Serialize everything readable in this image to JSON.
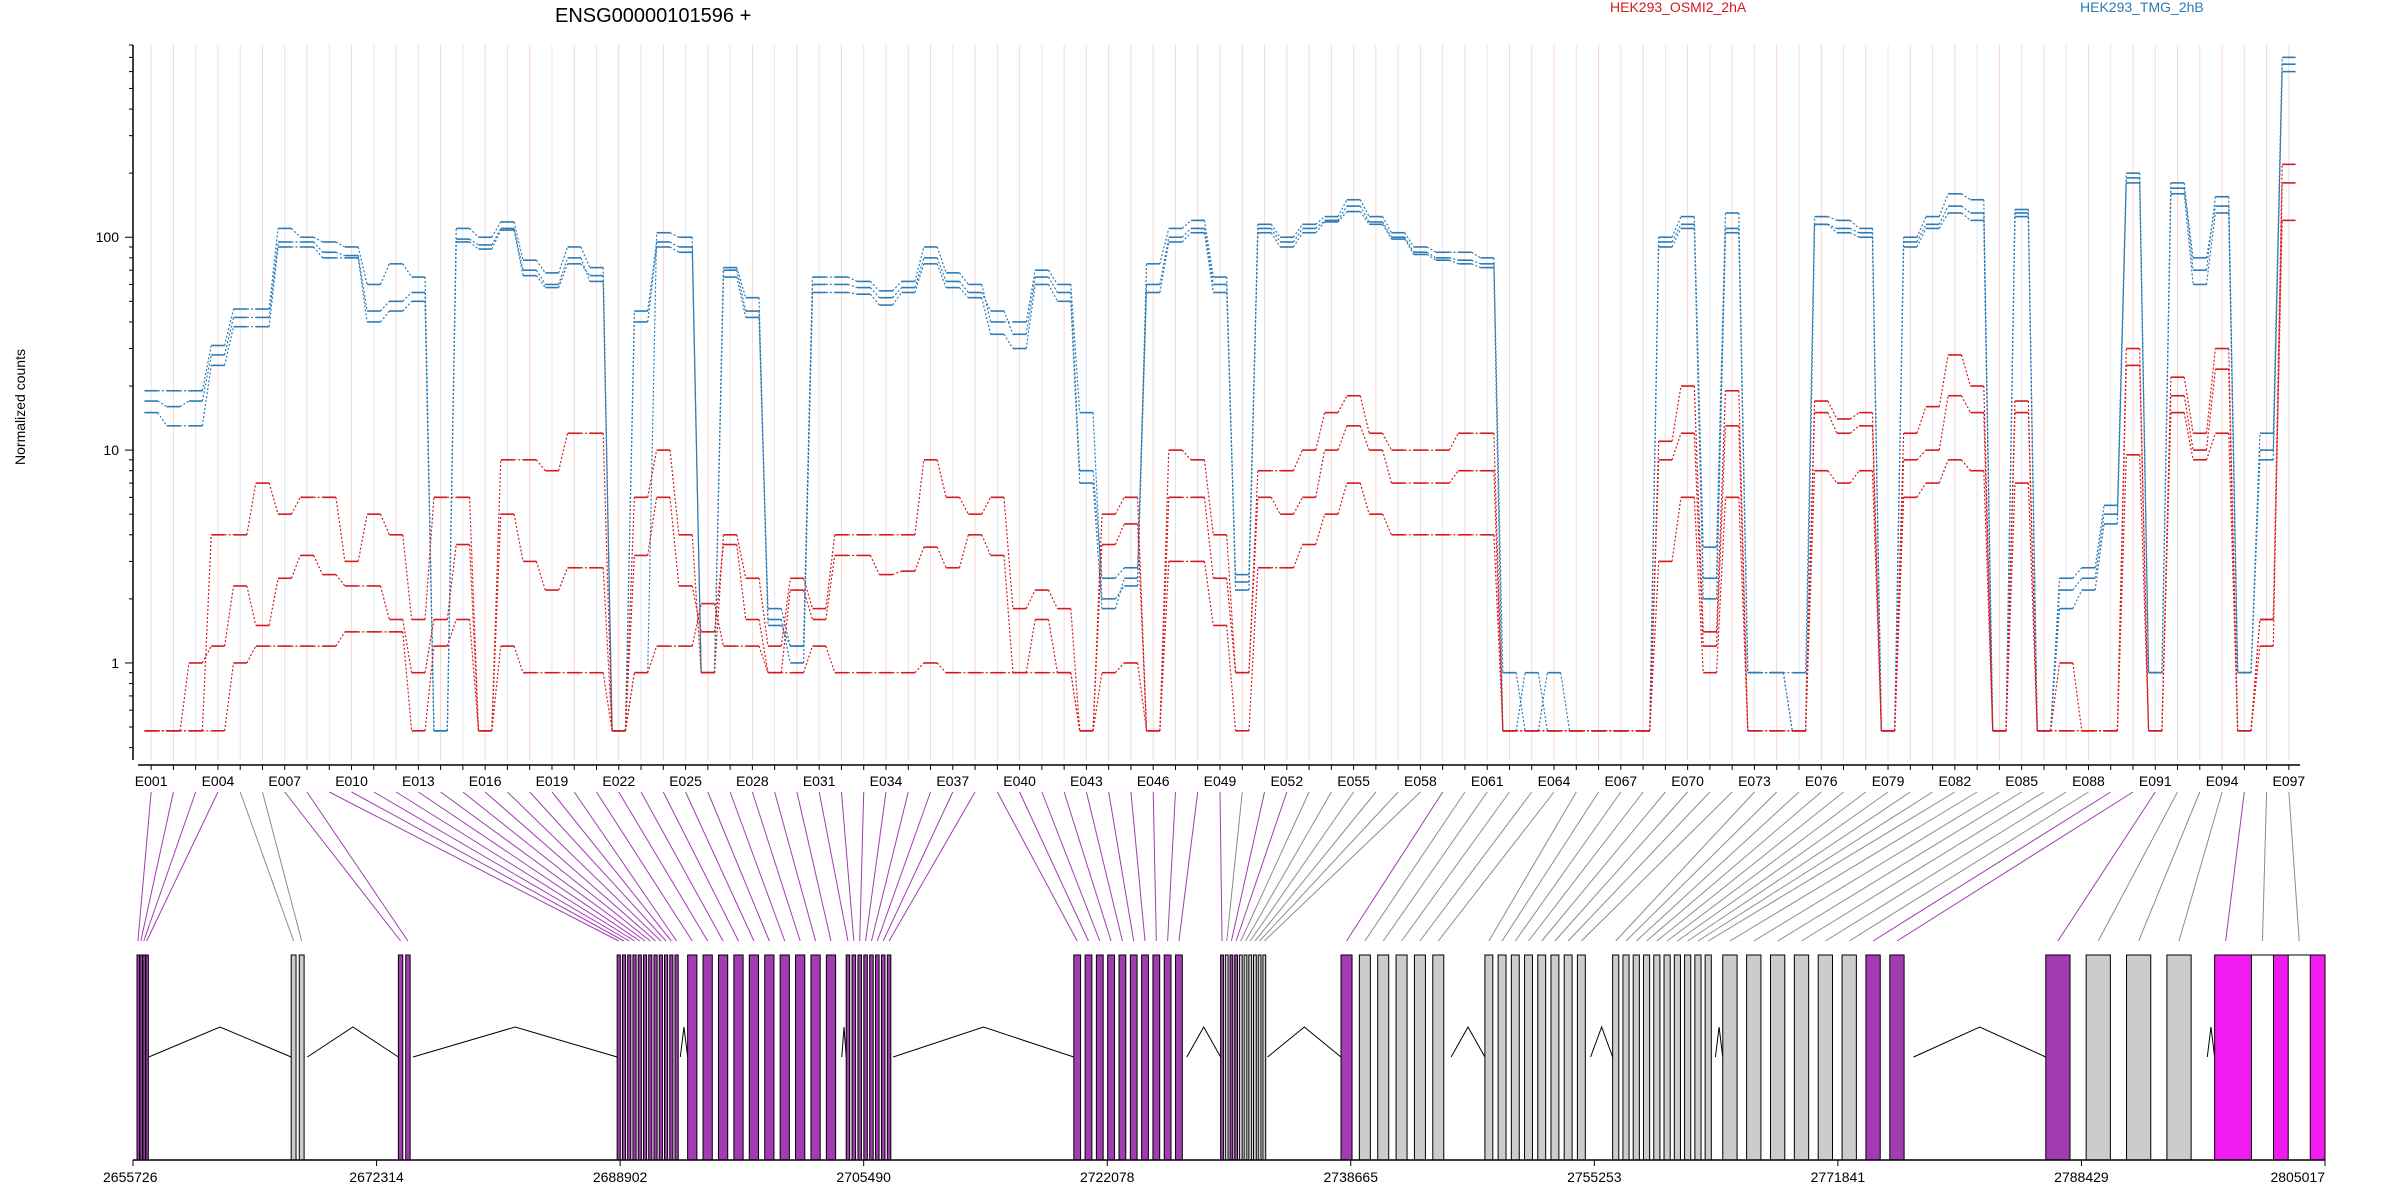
{
  "title": "ENSG00000101596 +",
  "colors": {
    "red": "#d7191c",
    "blue": "#2c7bb6",
    "magenta": "#f01cf0",
    "grey_exon": "#cccccc",
    "connector_grey": "#8c8c8c",
    "connector_purple": "#a33cb3"
  },
  "chart_data": {
    "type": "line",
    "title": "ENSG00000101596 +",
    "xlabel": "",
    "ylabel": "Normalized counts",
    "yscale": "log",
    "ylim": [
      0.35,
      800
    ],
    "y_ticks": [
      "1",
      "10",
      "100"
    ],
    "y_tick_values": [
      1,
      10,
      100
    ],
    "legend": [
      {
        "name": "HEK293_OSMI2_2hA",
        "color": "#d7191c",
        "placement": "top-center"
      },
      {
        "name": "HEK293_TMG_2hB",
        "color": "#2c7bb6",
        "placement": "top-right"
      }
    ],
    "exon_bins": [
      "E001",
      "E002",
      "E003",
      "E004",
      "E005",
      "E006",
      "E007",
      "E008",
      "E009",
      "E010",
      "E011",
      "E012",
      "E013",
      "E014",
      "E015",
      "E016",
      "E017",
      "E018",
      "E019",
      "E020",
      "E021",
      "E022",
      "E023",
      "E024",
      "E025",
      "E026",
      "E027",
      "E028",
      "E029",
      "E030",
      "E031",
      "E032",
      "E033",
      "E034",
      "E035",
      "E036",
      "E037",
      "E038",
      "E039",
      "E040",
      "E041",
      "E042",
      "E043",
      "E044",
      "E045",
      "E046",
      "E047",
      "E048",
      "E049",
      "E050",
      "E051",
      "E052",
      "E053",
      "E054",
      "E055",
      "E056",
      "E057",
      "E058",
      "E059",
      "E060",
      "E061",
      "E062",
      "E063",
      "E064",
      "E065",
      "E066",
      "E067",
      "E068",
      "E069",
      "E070",
      "E071",
      "E072",
      "E073",
      "E074",
      "E075",
      "E076",
      "E077",
      "E078",
      "E079",
      "E080",
      "E081",
      "E082",
      "E083",
      "E084",
      "E085",
      "E086",
      "E087",
      "E088",
      "E089",
      "E090",
      "E091",
      "E092",
      "E093",
      "E094",
      "E095",
      "E096",
      "E097"
    ],
    "x_tick_labels": [
      "E001",
      "E004",
      "E007",
      "E010",
      "E013",
      "E016",
      "E019",
      "E022",
      "E025",
      "E028",
      "E031",
      "E034",
      "E037",
      "E040",
      "E043",
      "E046",
      "E049",
      "E052",
      "E055",
      "E058",
      "E061",
      "E064",
      "E067",
      "E070",
      "E073",
      "E076",
      "E079",
      "E082",
      "E085",
      "E088",
      "E091",
      "E094",
      "E097"
    ],
    "series": [
      {
        "name": "HEK293_TMG_2hB",
        "color": "#2c7bb6",
        "values": [
          17,
          16,
          17,
          28,
          42,
          42,
          95,
          95,
          85,
          82,
          45,
          50,
          55,
          0.48,
          98,
          92,
          110,
          70,
          60,
          80,
          62,
          0.48,
          45,
          95,
          90,
          0.9,
          70,
          45,
          1.8,
          1.2,
          60,
          60,
          58,
          52,
          58,
          80,
          62,
          55,
          45,
          35,
          65,
          55,
          8,
          2.5,
          2.8,
          60,
          100,
          110,
          60,
          2.4,
          110,
          95,
          110,
          120,
          140,
          118,
          100,
          85,
          80,
          78,
          75,
          0.48,
          0.9,
          0.48,
          0.48,
          0.48,
          0.48,
          0.48,
          95,
          115,
          2.5,
          110,
          0.9,
          0.9,
          0.48,
          115,
          110,
          105,
          0.48,
          95,
          115,
          140,
          130,
          0.48,
          130,
          0.48,
          2.2,
          2.5,
          5,
          190,
          0.9,
          170,
          80,
          140,
          0.9,
          10,
          650
        ]
      },
      {
        "name": "HEK293_TMG_2hB",
        "color": "#2c7bb6",
        "values": [
          19,
          19,
          19,
          31,
          46,
          46,
          110,
          100,
          95,
          90,
          60,
          75,
          65,
          0.48,
          110,
          100,
          118,
          78,
          68,
          90,
          72,
          0.48,
          0.9,
          105,
          100,
          0.9,
          72,
          52,
          1.5,
          1.2,
          65,
          65,
          62,
          56,
          62,
          90,
          68,
          60,
          40,
          40,
          70,
          60,
          15,
          2.0,
          2.3,
          75,
          110,
          120,
          65,
          2.2,
          115,
          100,
          115,
          125,
          150,
          125,
          105,
          90,
          85,
          85,
          80,
          0.9,
          0.48,
          0.9,
          0.48,
          0.48,
          0.48,
          0.48,
          100,
          125,
          3.5,
          130,
          0.9,
          0.9,
          0.9,
          125,
          120,
          110,
          0.48,
          100,
          125,
          160,
          150,
          0.48,
          135,
          0.48,
          2.5,
          2.8,
          5.5,
          200,
          0.9,
          180,
          70,
          155,
          0.9,
          12,
          700
        ]
      },
      {
        "name": "HEK293_TMG_2hB",
        "color": "#2c7bb6",
        "values": [
          15,
          13,
          13,
          25,
          38,
          38,
          90,
          90,
          80,
          80,
          40,
          45,
          50,
          0.48,
          95,
          88,
          108,
          66,
          58,
          75,
          66,
          0.48,
          40,
          90,
          85,
          0.9,
          65,
          42,
          1.6,
          1.0,
          55,
          55,
          54,
          48,
          55,
          75,
          58,
          52,
          35,
          30,
          60,
          50,
          7,
          1.8,
          2.5,
          55,
          95,
          105,
          55,
          2.6,
          105,
          90,
          105,
          118,
          132,
          115,
          98,
          83,
          78,
          75,
          72,
          0.48,
          0.48,
          0.48,
          0.48,
          0.48,
          0.48,
          0.48,
          90,
          110,
          2.0,
          105,
          0.9,
          0.9,
          0.48,
          115,
          105,
          100,
          0.48,
          90,
          110,
          130,
          120,
          0.48,
          125,
          0.48,
          1.8,
          2.2,
          4.5,
          180,
          0.9,
          160,
          60,
          130,
          0.9,
          9,
          600
        ]
      },
      {
        "name": "HEK293_OSMI2_2hA",
        "color": "#d7191c",
        "values": [
          0.48,
          0.48,
          0.48,
          4,
          4,
          7,
          5,
          6,
          6,
          3,
          5,
          4,
          1.6,
          6,
          6,
          0.48,
          9,
          9,
          8,
          12,
          12,
          0.48,
          6,
          10,
          4,
          0.9,
          4,
          2.5,
          1.2,
          2.5,
          1.8,
          4,
          4,
          4,
          4,
          9,
          6,
          5,
          6,
          1.8,
          2.2,
          1.8,
          0.48,
          5,
          6,
          0.48,
          10,
          9,
          4,
          0.9,
          8,
          8,
          10,
          15,
          18,
          12,
          10,
          10,
          10,
          12,
          12,
          0.48,
          0.48,
          0.48,
          0.48,
          0.48,
          0.48,
          0.48,
          11,
          20,
          1.4,
          19,
          0.48,
          0.48,
          0.48,
          17,
          14,
          15,
          0.48,
          12,
          16,
          28,
          20,
          0.48,
          17,
          0.48,
          0.48,
          0.48,
          0.48,
          30,
          0.48,
          22,
          12,
          30,
          0.48,
          1.6,
          220
        ]
      },
      {
        "name": "HEK293_OSMI2_2hA",
        "color": "#d7191c",
        "values": [
          0.48,
          0.48,
          1.0,
          1.2,
          2.3,
          1.5,
          2.5,
          3.2,
          2.6,
          2.3,
          2.3,
          1.6,
          0.9,
          1.6,
          3.6,
          0.48,
          5,
          3,
          2.2,
          2.8,
          2.8,
          0.48,
          3.2,
          6,
          2.3,
          1.4,
          3.6,
          1.6,
          0.9,
          2.2,
          1.6,
          3.2,
          3.2,
          2.6,
          2.7,
          3.5,
          2.8,
          4,
          3.2,
          0.9,
          1.6,
          0.9,
          0.48,
          3.6,
          4.5,
          0.48,
          6,
          6,
          2.5,
          0.9,
          6,
          5,
          6,
          10,
          13,
          10,
          7,
          7,
          7,
          8,
          8,
          0.48,
          0.48,
          0.48,
          0.48,
          0.48,
          0.48,
          0.48,
          9,
          12,
          1.2,
          13,
          0.48,
          0.48,
          0.48,
          15,
          12,
          13,
          0.48,
          9,
          10,
          18,
          15,
          0.48,
          15,
          0.48,
          1.0,
          0.48,
          0.48,
          25,
          0.48,
          18,
          10,
          24,
          0.48,
          1.2,
          180
        ]
      },
      {
        "name": "HEK293_OSMI2_2hA",
        "color": "#d7191c",
        "values": [
          0.48,
          0.48,
          0.48,
          0.48,
          1.0,
          1.2,
          1.2,
          1.2,
          1.2,
          1.4,
          1.4,
          1.4,
          0.48,
          1.2,
          1.6,
          0.48,
          1.2,
          0.9,
          0.9,
          0.9,
          0.9,
          0.48,
          0.9,
          1.2,
          1.2,
          1.9,
          1.2,
          1.2,
          0.9,
          0.9,
          1.2,
          0.9,
          0.9,
          0.9,
          0.9,
          1.0,
          0.9,
          0.9,
          0.9,
          0.9,
          0.9,
          0.9,
          0.48,
          0.9,
          1.0,
          0.48,
          3,
          3,
          1.5,
          0.48,
          2.8,
          2.8,
          3.6,
          5,
          7,
          5,
          4,
          4,
          4,
          4,
          4,
          0.48,
          0.48,
          0.48,
          0.48,
          0.48,
          0.48,
          0.48,
          3,
          6,
          0.9,
          6,
          0.48,
          0.48,
          0.48,
          8,
          7,
          8,
          0.48,
          6,
          7,
          9,
          8,
          0.48,
          7,
          0.48,
          0.48,
          0.48,
          0.48,
          9.5,
          0.48,
          15,
          9,
          12,
          0.48,
          1.6,
          120
        ]
      }
    ],
    "genomic_ticks": [
      "2655726",
      "2672314",
      "2688902",
      "2705490",
      "2722078",
      "2738665",
      "2755253",
      "2771841",
      "2788429",
      "2805017"
    ],
    "genomic_tick_values": [
      2655726,
      2672314,
      2688902,
      2705490,
      2722078,
      2738665,
      2755253,
      2771841,
      2788429,
      2805017
    ],
    "genomic_range": [
      2655726,
      2805017
    ],
    "exon_color_code": "p = purple (differential), g = grey, w = white, m = magenta",
    "exon_bin_color": "ppppggpppppppppppppppppppppppppppppppppppppppppppgppggggggpgggggggggggggggggggggggggggggpppgggm"
  }
}
